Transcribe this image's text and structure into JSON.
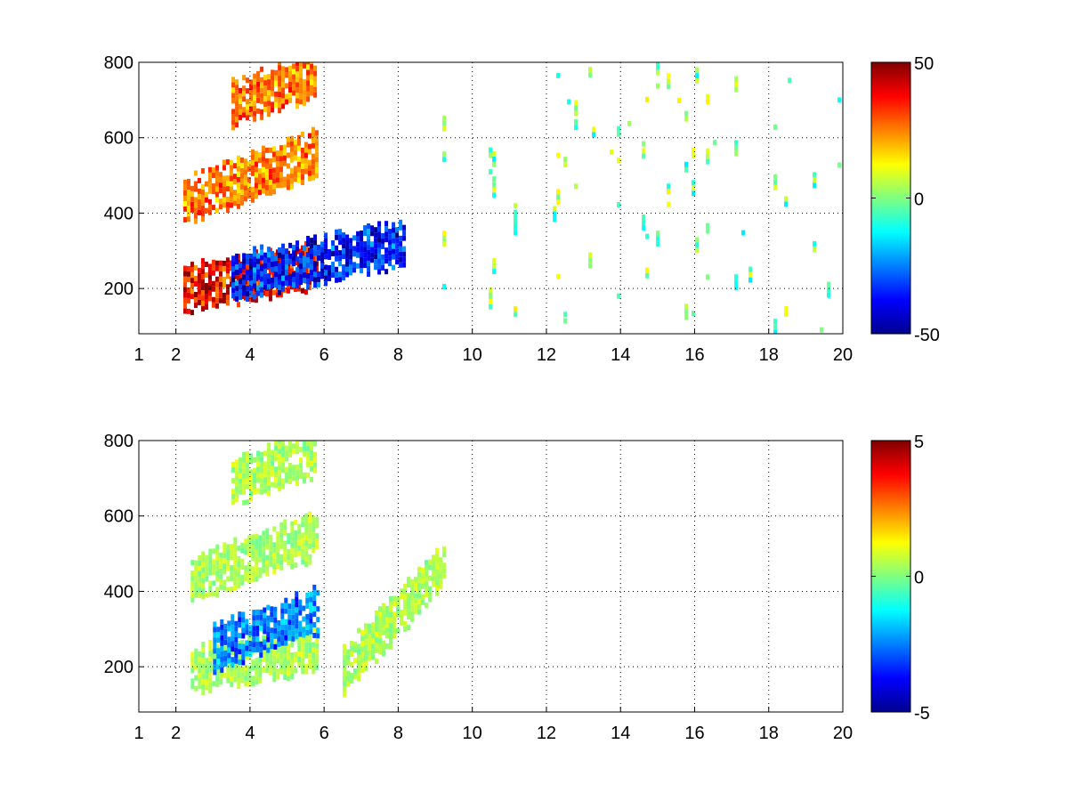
{
  "chart_data": [
    {
      "type": "heatmap",
      "x_ticks": [
        "1",
        "2",
        "4",
        "6",
        "8",
        "10",
        "12",
        "14",
        "16",
        "18",
        "20"
      ],
      "x_tick_values": [
        1,
        2,
        4,
        6,
        8,
        10,
        12,
        14,
        16,
        18,
        20
      ],
      "y_ticks": [
        "200",
        "400",
        "600",
        "800"
      ],
      "y_tick_values": [
        200,
        400,
        600,
        800
      ],
      "xlim": [
        1,
        20
      ],
      "ylim": [
        80,
        800
      ],
      "grid": true,
      "grid_style": "dotted",
      "colormap": "jet",
      "colorbar": {
        "range": [
          -50,
          50
        ],
        "ticks": [
          "50",
          "0",
          "-50"
        ],
        "tick_values": [
          50,
          0,
          -50
        ]
      },
      "features": [
        {
          "description": "dense band",
          "x_range": [
            2.2,
            5.8
          ],
          "y_start": 210,
          "y_end": 270,
          "value": 45
        },
        {
          "description": "band",
          "x_range": [
            3.5,
            8.2
          ],
          "y_start": 240,
          "y_end": 330,
          "value": -40
        },
        {
          "description": "band",
          "x_range": [
            2.2,
            5.8
          ],
          "y_start": 440,
          "y_end": 570,
          "value": 30
        },
        {
          "description": "band",
          "x_range": [
            3.5,
            5.8
          ],
          "y_start": 700,
          "y_end": 780,
          "value": 30
        },
        {
          "description": "scattered low-value columns",
          "x_range": [
            9.0,
            20.0
          ],
          "value": 0
        }
      ]
    },
    {
      "type": "heatmap",
      "x_ticks": [
        "1",
        "2",
        "4",
        "6",
        "8",
        "10",
        "12",
        "14",
        "16",
        "18",
        "20"
      ],
      "x_tick_values": [
        1,
        2,
        4,
        6,
        8,
        10,
        12,
        14,
        16,
        18,
        20
      ],
      "y_ticks": [
        "200",
        "400",
        "600",
        "800"
      ],
      "y_tick_values": [
        200,
        400,
        600,
        800
      ],
      "xlim": [
        1,
        20
      ],
      "ylim": [
        80,
        800
      ],
      "grid": true,
      "grid_style": "dotted",
      "colormap": "jet",
      "colorbar": {
        "range": [
          -5,
          5
        ],
        "ticks": [
          "5",
          "0",
          "-5"
        ],
        "tick_values": [
          5,
          0,
          -5
        ]
      },
      "features": [
        {
          "description": "band",
          "x_range": [
            2.4,
            5.8
          ],
          "y_start": 200,
          "y_end": 260,
          "value": 0.5
        },
        {
          "description": "band",
          "x_range": [
            3.0,
            5.8
          ],
          "y_start": 260,
          "y_end": 360,
          "value": -3
        },
        {
          "description": "band",
          "x_range": [
            2.4,
            5.8
          ],
          "y_start": 440,
          "y_end": 560,
          "value": 0.5
        },
        {
          "description": "band",
          "x_range": [
            3.5,
            5.8
          ],
          "y_start": 700,
          "y_end": 780,
          "value": 0.5
        },
        {
          "description": "cluster",
          "x_range": [
            6.5,
            9.2
          ],
          "y_start": 200,
          "y_end": 480,
          "value": 0.5
        }
      ]
    }
  ]
}
